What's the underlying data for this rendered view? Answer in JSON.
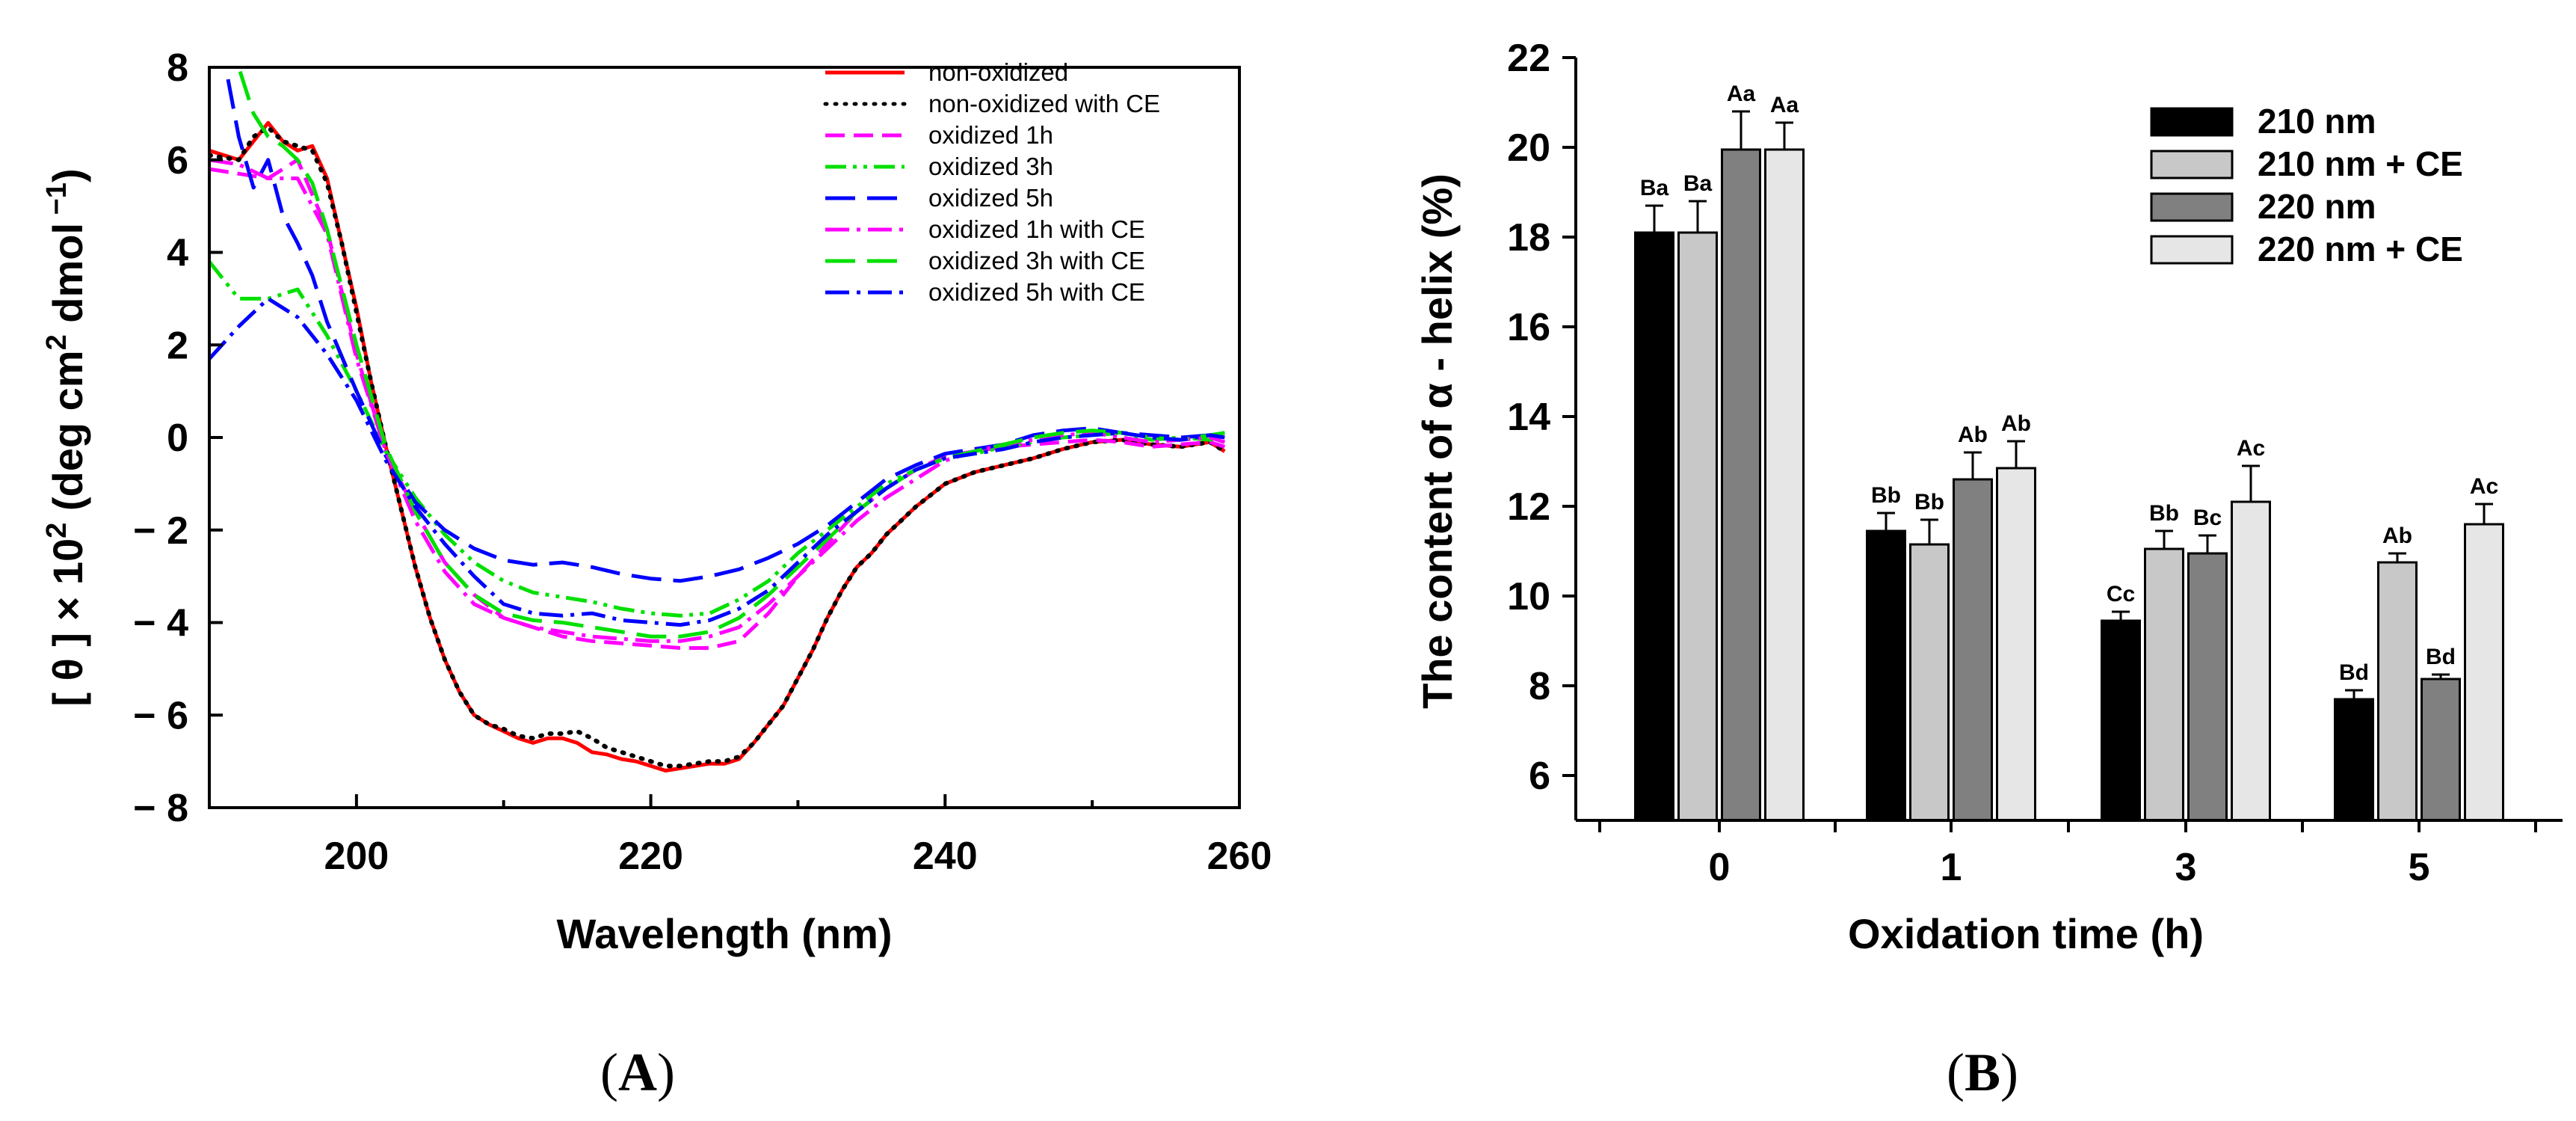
{
  "chart_data": [
    {
      "panel": "A",
      "type": "line",
      "title": "",
      "xlabel": "Wavelength (nm)",
      "ylabel_parts": [
        "[ θ ] × 10",
        "2",
        " (deg cm",
        "2",
        " dmol",
        " −1",
        ")"
      ],
      "xlim": [
        190,
        260
      ],
      "ylim": [
        -8,
        8
      ],
      "x_ticks": [
        200,
        220,
        240,
        260
      ],
      "y_ticks": [
        8,
        6,
        4,
        2,
        0,
        -2,
        -4,
        -6,
        -8
      ],
      "y_tick_labels": [
        "8",
        "6",
        "4",
        "2",
        "0",
        "− 2",
        "− 4",
        "− 6",
        "− 8"
      ],
      "legend_position": "top-right",
      "series": [
        {
          "name": "non-oxidized",
          "color": "#ff0000",
          "dash": "solid",
          "x": [
            190,
            192,
            193,
            194,
            195,
            196,
            197,
            198,
            199,
            200,
            201,
            202,
            203,
            204,
            205,
            206,
            207,
            208,
            209,
            210,
            211,
            212,
            213,
            214,
            215,
            216,
            217,
            218,
            219,
            220,
            221,
            222,
            223,
            224,
            225,
            226,
            227,
            228,
            229,
            230,
            231,
            232,
            233,
            234,
            235,
            236,
            237,
            238,
            239,
            240,
            242,
            244,
            246,
            248,
            250,
            252,
            254,
            256,
            258,
            259
          ],
          "y": [
            6.2,
            6.0,
            6.4,
            6.8,
            6.4,
            6.2,
            6.3,
            5.6,
            4.2,
            2.8,
            1.2,
            -0.2,
            -1.5,
            -2.8,
            -3.9,
            -4.8,
            -5.5,
            -6.0,
            -6.2,
            -6.35,
            -6.5,
            -6.6,
            -6.5,
            -6.5,
            -6.6,
            -6.8,
            -6.85,
            -6.95,
            -7.0,
            -7.1,
            -7.2,
            -7.15,
            -7.1,
            -7.05,
            -7.05,
            -6.95,
            -6.6,
            -6.2,
            -5.8,
            -5.2,
            -4.6,
            -3.9,
            -3.3,
            -2.8,
            -2.5,
            -2.1,
            -1.8,
            -1.5,
            -1.25,
            -1.0,
            -0.75,
            -0.6,
            -0.45,
            -0.25,
            -0.1,
            -0.05,
            -0.15,
            -0.2,
            -0.1,
            -0.3
          ]
        },
        {
          "name": "non-oxidized with CE",
          "color": "#000000",
          "dash": "dotted",
          "x": [
            190,
            192,
            193,
            194,
            195,
            196,
            197,
            198,
            199,
            200,
            201,
            202,
            203,
            204,
            205,
            206,
            207,
            208,
            209,
            210,
            211,
            212,
            213,
            214,
            215,
            216,
            217,
            218,
            219,
            220,
            221,
            222,
            223,
            224,
            225,
            226,
            227,
            228,
            229,
            230,
            231,
            232,
            233,
            234,
            235,
            236,
            237,
            238,
            239,
            240,
            242,
            244,
            246,
            248,
            250,
            252,
            254,
            256,
            258,
            259
          ],
          "y": [
            6.1,
            6.0,
            6.5,
            6.7,
            6.4,
            6.3,
            6.2,
            5.5,
            4.2,
            2.7,
            1.2,
            -0.2,
            -1.5,
            -2.8,
            -3.9,
            -4.8,
            -5.5,
            -6.0,
            -6.2,
            -6.3,
            -6.45,
            -6.5,
            -6.4,
            -6.4,
            -6.35,
            -6.5,
            -6.7,
            -6.8,
            -6.9,
            -7.0,
            -7.1,
            -7.1,
            -7.05,
            -7.0,
            -7.0,
            -6.9,
            -6.6,
            -6.2,
            -5.8,
            -5.2,
            -4.6,
            -3.9,
            -3.3,
            -2.8,
            -2.5,
            -2.1,
            -1.8,
            -1.5,
            -1.25,
            -1.0,
            -0.75,
            -0.6,
            -0.45,
            -0.25,
            -0.1,
            -0.05,
            -0.15,
            -0.2,
            -0.1,
            -0.3
          ]
        },
        {
          "name": "oxidized 1h",
          "color": "#ff00ff",
          "dash": "dashed",
          "x": [
            190,
            192,
            194,
            196,
            198,
            200,
            202,
            204,
            206,
            208,
            210,
            212,
            214,
            216,
            218,
            220,
            222,
            224,
            226,
            228,
            230,
            232,
            234,
            236,
            238,
            240,
            242,
            244,
            246,
            248,
            250,
            252,
            254,
            256,
            258,
            259
          ],
          "y": [
            5.8,
            5.7,
            5.6,
            6.0,
            4.5,
            1.8,
            -0.3,
            -1.6,
            -2.7,
            -3.4,
            -3.9,
            -4.1,
            -4.3,
            -4.4,
            -4.45,
            -4.5,
            -4.55,
            -4.55,
            -4.4,
            -3.8,
            -3.0,
            -2.3,
            -1.6,
            -1.1,
            -0.7,
            -0.4,
            -0.3,
            -0.2,
            -0.15,
            -0.1,
            -0.05,
            -0.1,
            -0.2,
            -0.15,
            -0.1,
            -0.2
          ]
        },
        {
          "name": "oxidized 3h",
          "color": "#00e000",
          "dash": "dashdotdot",
          "x": [
            190,
            192,
            194,
            196,
            198,
            200,
            202,
            204,
            206,
            208,
            210,
            212,
            214,
            216,
            218,
            220,
            222,
            224,
            226,
            228,
            230,
            232,
            234,
            236,
            238,
            240,
            242,
            244,
            246,
            248,
            250,
            252,
            254,
            256,
            258,
            259
          ],
          "y": [
            3.8,
            3.0,
            3.0,
            3.2,
            2.2,
            1.0,
            -0.3,
            -1.3,
            -2.1,
            -2.7,
            -3.1,
            -3.35,
            -3.45,
            -3.55,
            -3.7,
            -3.8,
            -3.85,
            -3.8,
            -3.5,
            -3.1,
            -2.5,
            -2.0,
            -1.5,
            -1.0,
            -0.7,
            -0.45,
            -0.35,
            -0.2,
            -0.1,
            0.0,
            0.05,
            0.1,
            -0.05,
            0.0,
            -0.05,
            0.05
          ]
        },
        {
          "name": "oxidized 5h",
          "color": "#0000ff",
          "dash": "longdash",
          "x": [
            190,
            191,
            192,
            193,
            194,
            195,
            196,
            197,
            198,
            200,
            202,
            204,
            206,
            208,
            210,
            212,
            214,
            216,
            218,
            220,
            222,
            224,
            226,
            228,
            230,
            232,
            234,
            236,
            238,
            240,
            242,
            244,
            246,
            248,
            250,
            252,
            254,
            256,
            258,
            259
          ],
          "y": [
            8.5,
            8.2,
            6.5,
            5.4,
            6.0,
            4.8,
            4.2,
            3.5,
            2.5,
            1.0,
            -0.4,
            -1.4,
            -2.0,
            -2.4,
            -2.65,
            -2.75,
            -2.7,
            -2.8,
            -2.95,
            -3.05,
            -3.1,
            -3.0,
            -2.85,
            -2.6,
            -2.3,
            -1.9,
            -1.4,
            -0.9,
            -0.6,
            -0.35,
            -0.25,
            -0.15,
            0.05,
            0.15,
            0.2,
            0.1,
            0.05,
            0.0,
            0.05,
            0.1
          ]
        },
        {
          "name": "oxidized 1h with CE",
          "color": "#ff00ff",
          "dash": "dashdot",
          "x": [
            190,
            192,
            194,
            196,
            198,
            200,
            202,
            204,
            206,
            208,
            210,
            212,
            214,
            216,
            218,
            220,
            222,
            224,
            226,
            228,
            230,
            232,
            234,
            236,
            238,
            240,
            242,
            244,
            246,
            248,
            250,
            252,
            254,
            256,
            258,
            259
          ],
          "y": [
            6.0,
            5.9,
            5.6,
            5.6,
            4.4,
            1.7,
            -0.3,
            -1.8,
            -2.9,
            -3.6,
            -3.9,
            -4.1,
            -4.2,
            -4.3,
            -4.35,
            -4.4,
            -4.4,
            -4.3,
            -4.1,
            -3.6,
            -3.0,
            -2.4,
            -1.8,
            -1.3,
            -0.9,
            -0.5,
            -0.3,
            -0.15,
            -0.05,
            0.05,
            0.1,
            0.0,
            -0.1,
            -0.05,
            0.0,
            -0.1
          ]
        },
        {
          "name": "oxidized 3h with CE",
          "color": "#00e000",
          "dash": "longdash",
          "x": [
            190,
            192,
            193,
            194,
            195,
            196,
            197,
            198,
            200,
            202,
            204,
            206,
            208,
            210,
            212,
            214,
            216,
            218,
            220,
            222,
            224,
            226,
            228,
            230,
            232,
            234,
            236,
            238,
            240,
            242,
            244,
            246,
            248,
            250,
            252,
            254,
            256,
            258,
            259
          ],
          "y": [
            8.5,
            8.0,
            7.0,
            6.5,
            6.3,
            6.0,
            5.5,
            4.5,
            2.0,
            -0.2,
            -1.6,
            -2.7,
            -3.4,
            -3.8,
            -3.95,
            -4.0,
            -4.1,
            -4.2,
            -4.3,
            -4.3,
            -4.2,
            -3.9,
            -3.4,
            -2.8,
            -2.2,
            -1.6,
            -1.1,
            -0.7,
            -0.45,
            -0.3,
            -0.15,
            0.0,
            0.1,
            0.15,
            0.1,
            0.0,
            -0.05,
            0.05,
            0.1
          ]
        },
        {
          "name": "oxidized 5h with CE",
          "color": "#0000ff",
          "dash": "dashdot",
          "x": [
            190,
            192,
            194,
            196,
            198,
            200,
            202,
            204,
            206,
            208,
            210,
            212,
            214,
            216,
            218,
            220,
            222,
            224,
            226,
            228,
            230,
            232,
            234,
            236,
            238,
            240,
            242,
            244,
            246,
            248,
            250,
            252,
            254,
            256,
            258,
            259
          ],
          "y": [
            1.7,
            2.4,
            3.0,
            2.6,
            1.8,
            0.8,
            -0.5,
            -1.5,
            -2.3,
            -3.0,
            -3.6,
            -3.8,
            -3.85,
            -3.8,
            -3.95,
            -4.0,
            -4.05,
            -3.95,
            -3.7,
            -3.3,
            -2.7,
            -2.1,
            -1.6,
            -1.1,
            -0.7,
            -0.45,
            -0.35,
            -0.25,
            -0.1,
            0.0,
            0.05,
            0.1,
            0.0,
            -0.05,
            0.05,
            0.0
          ]
        }
      ]
    },
    {
      "panel": "B",
      "type": "bar",
      "title": "",
      "xlabel": "Oxidation time (h)",
      "ylabel": "The content of α - helix (%)",
      "ylim": [
        5,
        22
      ],
      "y_ticks": [
        6,
        8,
        10,
        12,
        14,
        16,
        18,
        20,
        22
      ],
      "categories": [
        "0",
        "1",
        "3",
        "5"
      ],
      "legend_position": "top-right",
      "series": [
        {
          "name": "210 nm",
          "color": "#000000",
          "values": [
            18.1,
            11.45,
            9.45,
            7.7
          ],
          "errors": [
            0.6,
            0.4,
            0.2,
            0.2
          ],
          "labels": [
            "Ba",
            "Bb",
            "Cc",
            "Bd"
          ]
        },
        {
          "name": "210 nm + CE",
          "color": "#c8c8c8",
          "values": [
            18.1,
            11.15,
            11.05,
            10.75
          ],
          "errors": [
            0.7,
            0.55,
            0.4,
            0.2
          ],
          "labels": [
            "Ba",
            "Bb",
            "Bb",
            "Ab"
          ]
        },
        {
          "name": "220 nm",
          "color": "#808080",
          "values": [
            19.95,
            12.6,
            10.95,
            8.15
          ],
          "errors": [
            0.85,
            0.6,
            0.4,
            0.1
          ],
          "labels": [
            "Aa",
            "Ab",
            "Bc",
            "Bd"
          ]
        },
        {
          "name": "220 nm + CE",
          "color": "#e6e6e6",
          "values": [
            19.95,
            12.85,
            12.1,
            11.6
          ],
          "errors": [
            0.6,
            0.6,
            0.8,
            0.45
          ],
          "labels": [
            "Aa",
            "Ab",
            "Ac",
            "Ac"
          ]
        }
      ]
    }
  ],
  "panel_labels": {
    "a": "A",
    "b": "B"
  }
}
